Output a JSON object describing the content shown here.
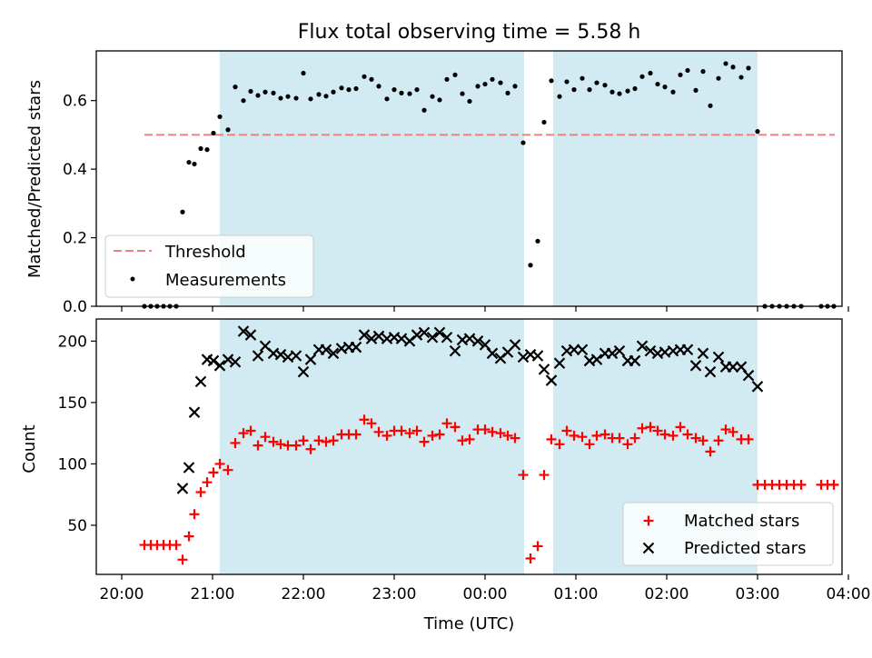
{
  "title": "Flux total observing time = 5.58 h",
  "colors": {
    "shade": "#add8e6",
    "threshold": "#f08080",
    "measurement": "#000000",
    "matched": "#ff0000",
    "predicted": "#000000"
  },
  "chart_data": [
    {
      "type": "scatter",
      "ylabel": "Matched/Predicted stars",
      "xlim": [
        -0.28,
        7.93
      ],
      "ylim": [
        0,
        0.745
      ],
      "y_ticks": [
        0.0,
        0.2,
        0.4,
        0.6
      ],
      "y_tick_labels": [
        "0.0",
        "0.2",
        "0.4",
        "0.6"
      ],
      "shaded_intervals_hours": [
        [
          1.08,
          4.43
        ],
        [
          4.75,
          7.0
        ]
      ],
      "threshold": {
        "value": 0.5,
        "x_range": [
          0.25,
          7.85
        ]
      },
      "legend": {
        "placement": "lower-left",
        "entries": [
          "Threshold",
          "Measurements"
        ]
      },
      "series": [
        {
          "name": "Measurements",
          "x": [
            0.25,
            0.32,
            0.39,
            0.46,
            0.53,
            0.6,
            0.67,
            0.74,
            0.8,
            0.87,
            0.94,
            1.01,
            1.08,
            1.17,
            1.25,
            1.34,
            1.42,
            1.5,
            1.58,
            1.67,
            1.75,
            1.83,
            1.92,
            2.0,
            2.08,
            2.17,
            2.25,
            2.33,
            2.42,
            2.5,
            2.58,
            2.67,
            2.75,
            2.83,
            2.92,
            3.0,
            3.08,
            3.17,
            3.25,
            3.33,
            3.42,
            3.5,
            3.58,
            3.67,
            3.75,
            3.83,
            3.92,
            4.0,
            4.08,
            4.17,
            4.25,
            4.33,
            4.42,
            4.5,
            4.58,
            4.65,
            4.73,
            4.82,
            4.9,
            4.98,
            5.07,
            5.15,
            5.23,
            5.32,
            5.4,
            5.48,
            5.57,
            5.65,
            5.73,
            5.82,
            5.9,
            5.98,
            6.07,
            6.15,
            6.23,
            6.32,
            6.4,
            6.48,
            6.57,
            6.65,
            6.73,
            6.82,
            6.9,
            7.0,
            7.08,
            7.16,
            7.24,
            7.32,
            7.4,
            7.48,
            7.7,
            7.77,
            7.84
          ],
          "y": [
            0.0,
            0.0,
            0.0,
            0.0,
            0.0,
            0.0,
            0.275,
            0.42,
            0.415,
            0.46,
            0.457,
            0.505,
            0.553,
            0.515,
            0.64,
            0.6,
            0.627,
            0.615,
            0.625,
            0.622,
            0.607,
            0.612,
            0.607,
            0.68,
            0.605,
            0.618,
            0.613,
            0.625,
            0.637,
            0.632,
            0.635,
            0.67,
            0.662,
            0.642,
            0.605,
            0.632,
            0.622,
            0.62,
            0.632,
            0.572,
            0.612,
            0.602,
            0.662,
            0.675,
            0.62,
            0.598,
            0.642,
            0.648,
            0.662,
            0.652,
            0.622,
            0.642,
            0.477,
            0.12,
            0.19,
            0.537,
            0.658,
            0.612,
            0.655,
            0.632,
            0.665,
            0.632,
            0.652,
            0.645,
            0.625,
            0.62,
            0.628,
            0.635,
            0.67,
            0.68,
            0.648,
            0.64,
            0.625,
            0.675,
            0.688,
            0.63,
            0.685,
            0.585,
            0.665,
            0.708,
            0.698,
            0.668,
            0.695,
            0.51,
            0.0,
            0.0,
            0.0,
            0.0,
            0.0,
            0.0,
            0.0,
            0.0,
            0.0
          ]
        }
      ]
    },
    {
      "type": "scatter",
      "xlabel": "Time (UTC)",
      "ylabel": "Count",
      "xlim": [
        -0.28,
        7.93
      ],
      "ylim": [
        10,
        218
      ],
      "x_ticks": [
        0,
        1,
        2,
        3,
        4,
        5,
        6,
        7,
        8
      ],
      "x_tick_labels": [
        "20:00",
        "21:00",
        "22:00",
        "23:00",
        "00:00",
        "01:00",
        "02:00",
        "03:00",
        "04:00"
      ],
      "y_ticks": [
        50,
        100,
        150,
        200
      ],
      "y_tick_labels": [
        "50",
        "100",
        "150",
        "200"
      ],
      "shaded_intervals_hours": [
        [
          1.08,
          4.43
        ],
        [
          4.75,
          7.0
        ]
      ],
      "legend": {
        "placement": "lower-right",
        "entries": [
          "Matched stars",
          "Predicted stars"
        ]
      },
      "series": [
        {
          "name": "Matched stars",
          "marker": "plus",
          "x": [
            0.25,
            0.32,
            0.39,
            0.46,
            0.53,
            0.6,
            0.67,
            0.74,
            0.8,
            0.87,
            0.94,
            1.01,
            1.08,
            1.17,
            1.25,
            1.34,
            1.42,
            1.5,
            1.58,
            1.67,
            1.75,
            1.83,
            1.92,
            2.0,
            2.08,
            2.17,
            2.25,
            2.33,
            2.42,
            2.5,
            2.58,
            2.67,
            2.75,
            2.83,
            2.92,
            3.0,
            3.08,
            3.17,
            3.25,
            3.33,
            3.42,
            3.5,
            3.58,
            3.67,
            3.75,
            3.83,
            3.92,
            4.0,
            4.08,
            4.17,
            4.25,
            4.33,
            4.42,
            4.5,
            4.58,
            4.65,
            4.73,
            4.82,
            4.9,
            4.98,
            5.07,
            5.15,
            5.23,
            5.32,
            5.4,
            5.48,
            5.57,
            5.65,
            5.73,
            5.82,
            5.9,
            5.98,
            6.07,
            6.15,
            6.23,
            6.32,
            6.4,
            6.48,
            6.57,
            6.65,
            6.73,
            6.82,
            6.9,
            7.0,
            7.08,
            7.16,
            7.24,
            7.32,
            7.4,
            7.48,
            7.7,
            7.77,
            7.84
          ],
          "y": [
            34,
            34,
            34,
            34,
            34,
            34,
            22,
            41,
            59,
            77,
            85,
            93,
            100,
            95,
            117,
            125,
            127,
            115,
            122,
            118,
            116,
            115,
            115,
            119,
            112,
            119,
            118,
            119,
            124,
            124,
            124,
            136,
            133,
            126,
            123,
            127,
            127,
            125,
            127,
            118,
            123,
            124,
            133,
            130,
            119,
            120,
            128,
            128,
            126,
            125,
            123,
            121,
            91,
            23,
            33,
            91,
            120,
            116,
            127,
            123,
            122,
            116,
            123,
            124,
            121,
            121,
            116,
            121,
            129,
            130,
            127,
            124,
            123,
            130,
            124,
            121,
            119,
            110,
            119,
            128,
            126,
            120,
            120,
            83,
            83,
            83,
            83,
            83,
            83,
            83,
            83,
            83,
            83
          ]
        },
        {
          "name": "Predicted stars",
          "marker": "x",
          "x": [
            0.67,
            0.74,
            0.8,
            0.87,
            0.94,
            1.01,
            1.08,
            1.17,
            1.25,
            1.34,
            1.42,
            1.5,
            1.58,
            1.67,
            1.75,
            1.83,
            1.92,
            2.0,
            2.08,
            2.17,
            2.25,
            2.33,
            2.42,
            2.5,
            2.58,
            2.67,
            2.75,
            2.83,
            2.92,
            3.0,
            3.08,
            3.17,
            3.25,
            3.33,
            3.42,
            3.5,
            3.58,
            3.67,
            3.75,
            3.83,
            3.92,
            4.0,
            4.08,
            4.17,
            4.25,
            4.33,
            4.42,
            4.5,
            4.58,
            4.65,
            4.73,
            4.82,
            4.9,
            4.98,
            5.07,
            5.15,
            5.23,
            5.32,
            5.4,
            5.48,
            5.57,
            5.65,
            5.73,
            5.82,
            5.9,
            5.98,
            6.07,
            6.15,
            6.23,
            6.32,
            6.4,
            6.48,
            6.57,
            6.65,
            6.73,
            6.82,
            6.9,
            7.0
          ],
          "y": [
            80,
            97,
            142,
            167,
            185,
            184,
            180,
            185,
            183,
            208,
            205,
            188,
            196,
            190,
            189,
            187,
            188,
            175,
            185,
            193,
            193,
            190,
            194,
            195,
            195,
            205,
            202,
            204,
            202,
            203,
            202,
            200,
            205,
            207,
            203,
            207,
            203,
            192,
            201,
            202,
            200,
            197,
            190,
            186,
            191,
            197,
            187,
            189,
            188,
            177,
            168,
            182,
            192,
            193,
            193,
            184,
            185,
            190,
            190,
            192,
            184,
            184,
            196,
            192,
            190,
            191,
            192,
            193,
            193,
            180,
            190,
            175,
            187,
            179,
            179,
            179,
            172,
            163
          ]
        }
      ]
    }
  ]
}
